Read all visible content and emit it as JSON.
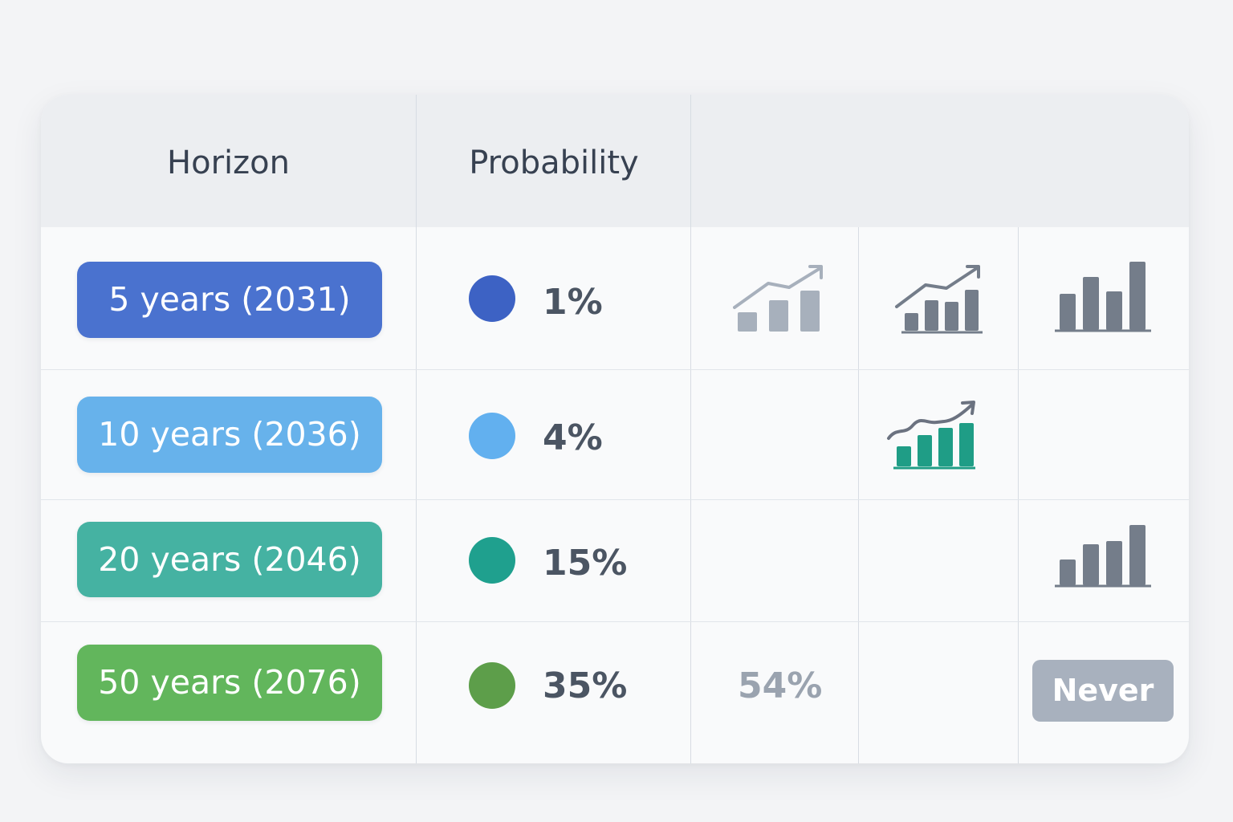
{
  "table": {
    "headers": {
      "horizon": "Horizon",
      "probability": "Probability"
    },
    "rows": [
      {
        "horizon": "5 years (2031)",
        "probability": "1%",
        "pill_color": "#4a72cf",
        "dot_color": "#3d62c4"
      },
      {
        "horizon": "10 years (2036)",
        "probability": "4%",
        "pill_color": "#67b2eb",
        "dot_color": "#62b0ef"
      },
      {
        "horizon": "20 years (2046)",
        "probability": "15%",
        "pill_color": "#45b2a2",
        "dot_color": "#1fa08e"
      },
      {
        "horizon": "50 years (2076)",
        "probability": "35%",
        "pill_color": "#62b65c",
        "dot_color": "#5d9e4a"
      }
    ],
    "extra": {
      "row4_col3_value": "54%",
      "row4_col5_badge": "Never"
    },
    "icons": {
      "row1_col3": "bar-chart-trend-icon",
      "row1_col4": "bar-chart-trend-icon",
      "row1_col5": "bar-chart-icon",
      "row2_col4": "bar-chart-trend-icon",
      "row3_col5": "bar-chart-icon"
    },
    "colors": {
      "icon_light_gray": "#a7b0bc",
      "icon_gray": "#747d8a",
      "icon_green": "#1f9d86",
      "text_dark": "#374151",
      "text_muted": "#9aa3af"
    }
  }
}
